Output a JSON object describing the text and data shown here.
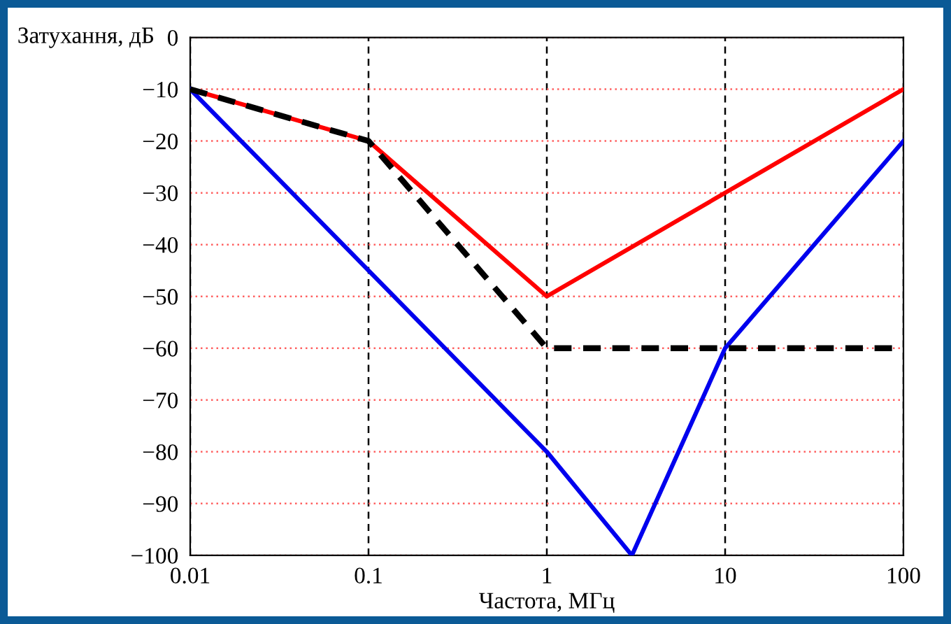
{
  "chart_data": {
    "type": "line",
    "ylabel": "Затухання, дБ",
    "xlabel": "Частота, МГц",
    "log": "x",
    "series": [
      {
        "color": "#ff0000",
        "x": [
          0.01,
          0.1,
          1,
          100
        ],
        "values": [
          -10,
          -20,
          -50,
          -10
        ]
      },
      {
        "color": "#0000ee",
        "x": [
          0.01,
          1,
          3,
          10,
          100
        ],
        "values": [
          -10,
          -80,
          -100,
          -60,
          -20
        ]
      },
      {
        "color": "#000000",
        "x": [
          0.01,
          0.1,
          1,
          100
        ],
        "values": [
          -10,
          -20,
          -60,
          -60
        ],
        "line_style": "dashed"
      }
    ],
    "xlim": [
      0.01,
      100
    ],
    "xticks": [
      0.01,
      0.1,
      1,
      10,
      100
    ],
    "ylim": [
      -100,
      0
    ],
    "yticks": [
      {
        "value": -100,
        "label": "−100"
      },
      {
        "value": -90,
        "label": "−90"
      },
      {
        "value": -80,
        "label": "−80"
      },
      {
        "value": -70,
        "label": "−70"
      },
      {
        "value": -60,
        "label": "−60"
      },
      {
        "value": -50,
        "label": "−50"
      },
      {
        "value": -40,
        "label": "−40"
      },
      {
        "value": -30,
        "label": "−30"
      },
      {
        "value": -20,
        "label": "−20"
      },
      {
        "value": -10,
        "label": "−10"
      },
      0
    ],
    "grid": true,
    "marker": "none"
  }
}
